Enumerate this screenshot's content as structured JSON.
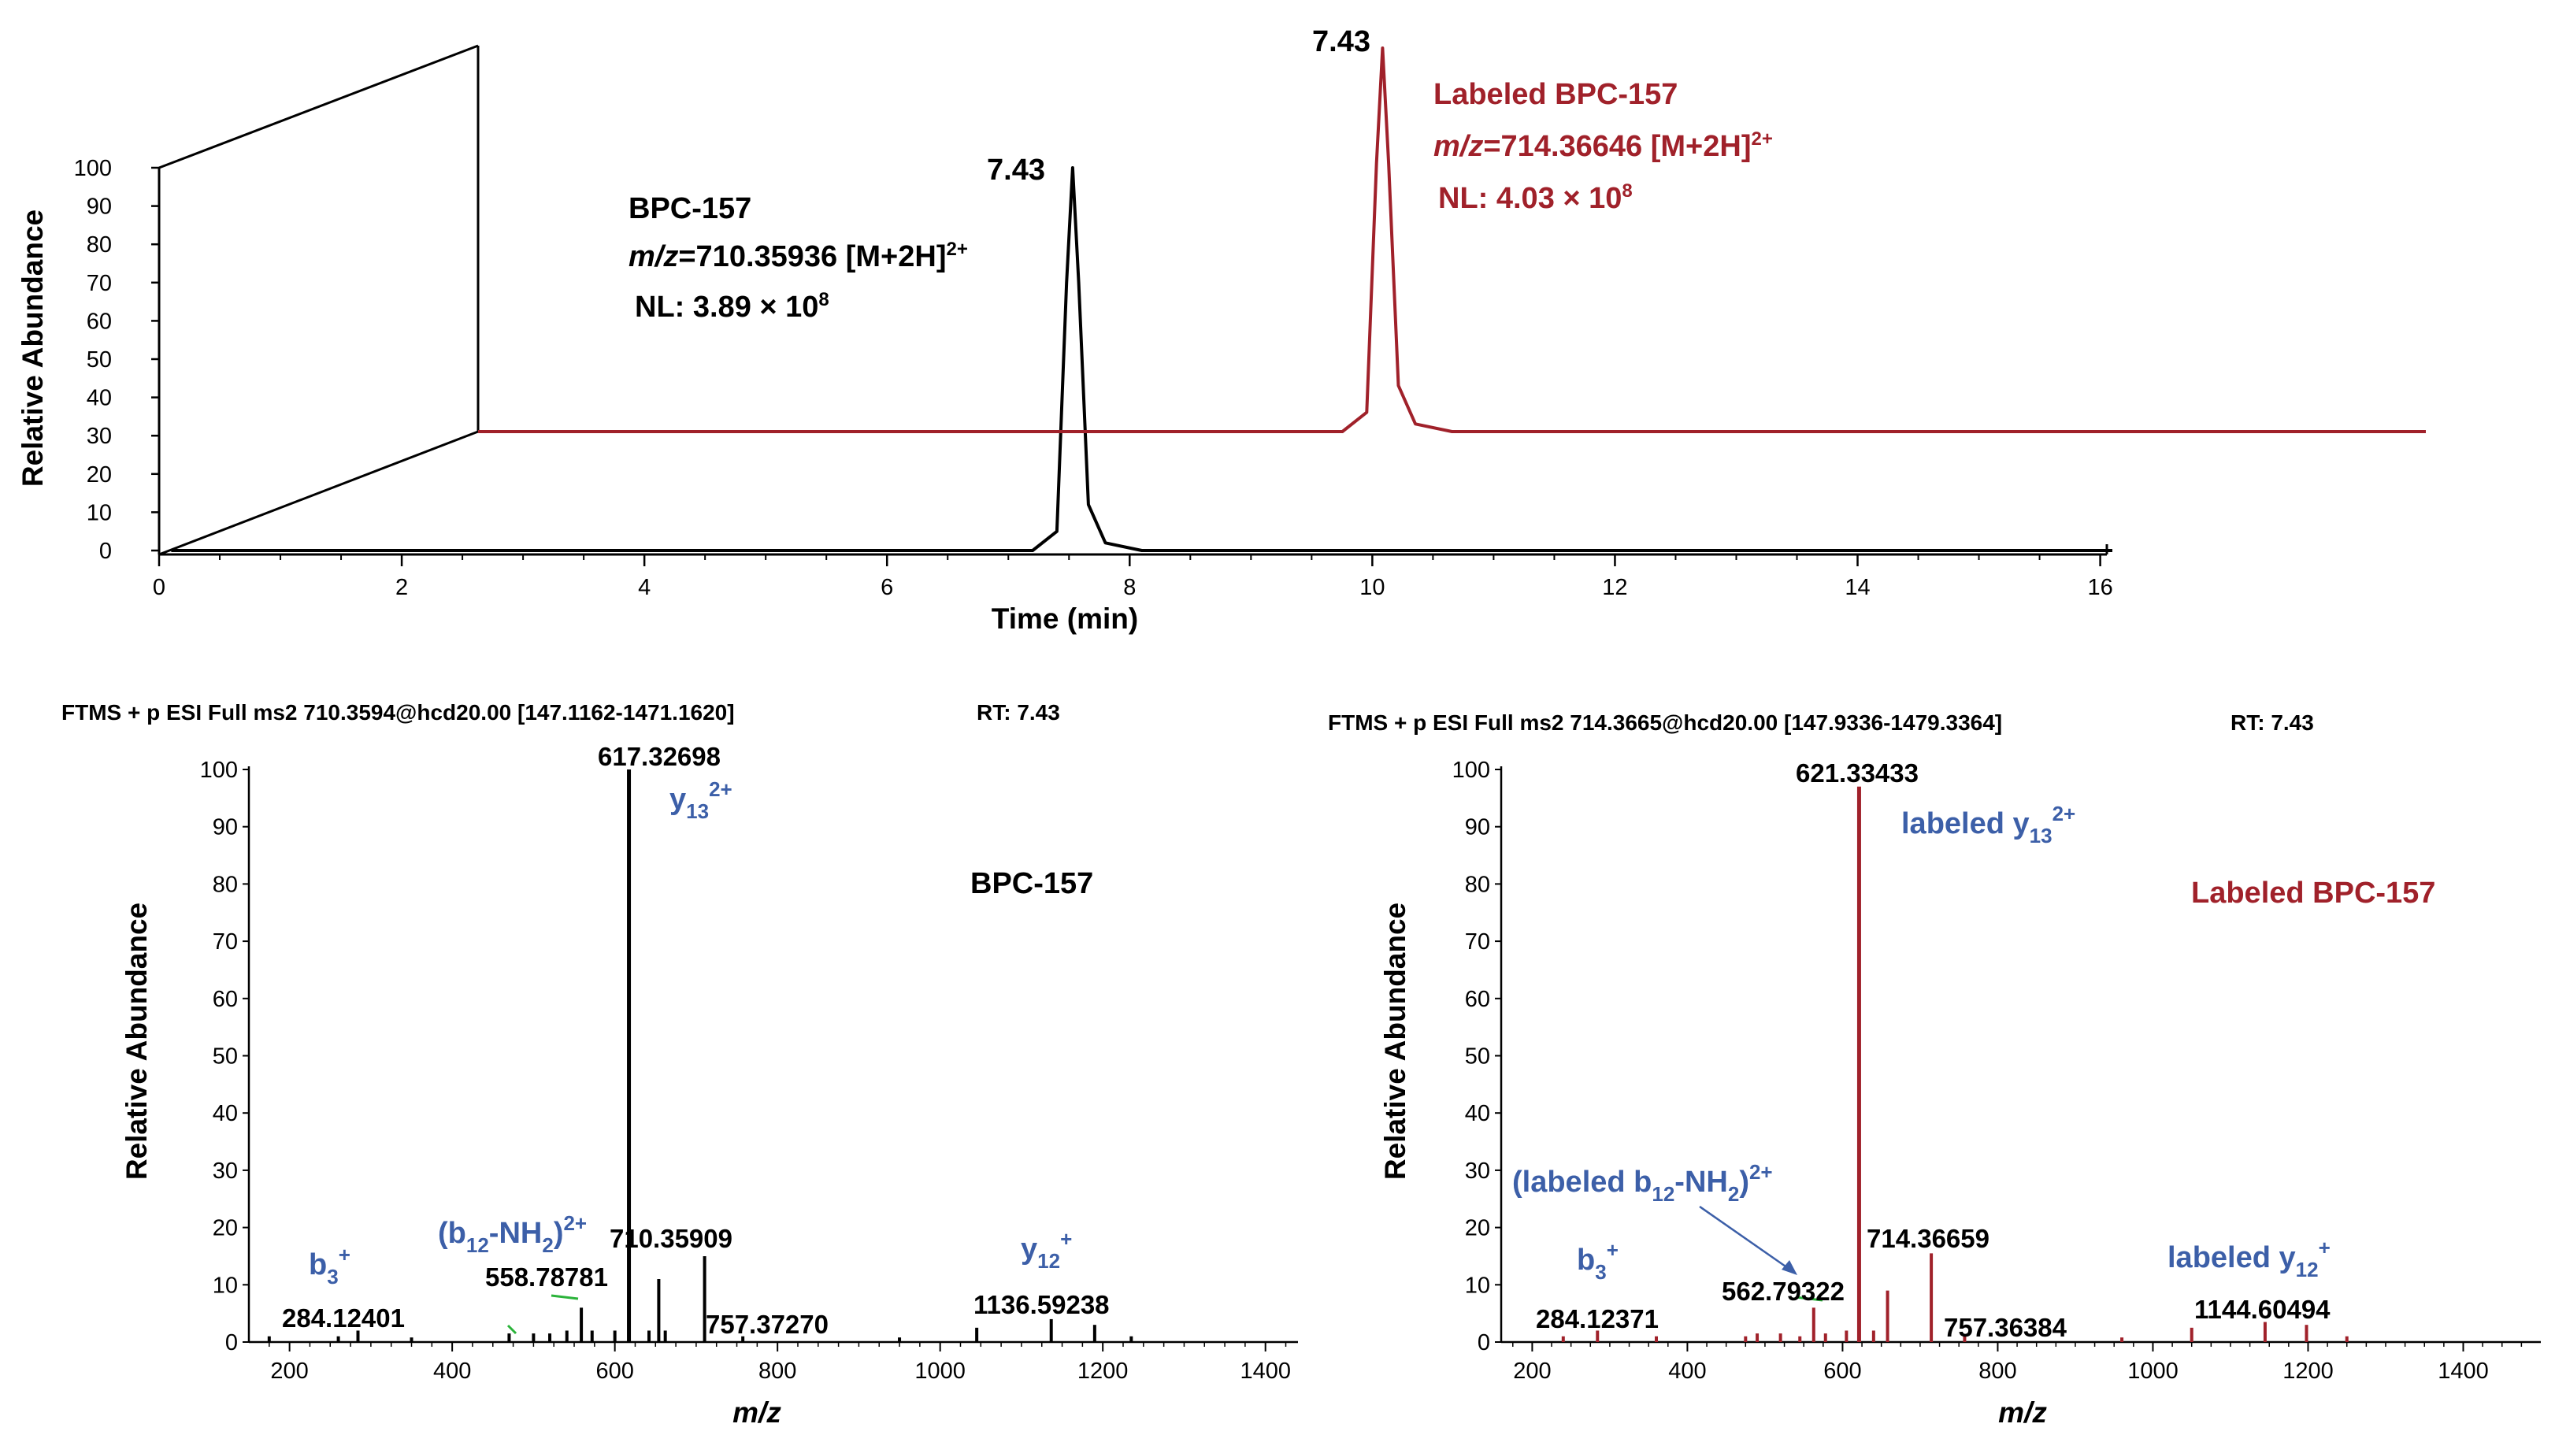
{
  "colors": {
    "black": "#000000",
    "red": "#a0212a",
    "blue": "#3c5fa8",
    "green": "#2bb33a"
  },
  "chart_data": [
    {
      "type": "line",
      "title": "",
      "xlabel": "Time (min)",
      "ylabel": "Relative Abundance",
      "xlim": [
        0,
        16
      ],
      "ylim": [
        0,
        100
      ],
      "xticks": [
        "0",
        "2",
        "4",
        "6",
        "8",
        "10",
        "12",
        "14",
        "16"
      ],
      "yticks": [
        "0",
        "10",
        "20",
        "30",
        "40",
        "50",
        "60",
        "70",
        "80",
        "90",
        "100"
      ],
      "series": [
        {
          "name": "BPC-157",
          "color": "#000000",
          "peak_rt": 7.43,
          "peak_label": "7.43",
          "annotation": {
            "line1": "BPC-157",
            "mz_italic": "m/z",
            "mz_value": "=710.35936  [M+2H]",
            "charge": "2+",
            "nl_text": "NL: 3.89 × 10",
            "nl_exp": "8"
          },
          "x": [
            0,
            7.1,
            7.3,
            7.38,
            7.43,
            7.48,
            7.56,
            7.7,
            8.0,
            16
          ],
          "y": [
            0,
            0,
            5,
            70,
            100,
            70,
            12,
            2,
            0,
            0
          ]
        },
        {
          "name": "Labeled BPC-157",
          "color": "#a0212a",
          "peak_rt": 7.43,
          "peak_label": "7.43",
          "annotation": {
            "line1": "Labeled BPC-157",
            "mz_italic": "m/z",
            "mz_value": "=714.36646 [M+2H]",
            "charge": "2+",
            "nl_text": "NL: 4.03 × 10",
            "nl_exp": "8"
          },
          "x": [
            0,
            7.1,
            7.3,
            7.38,
            7.43,
            7.48,
            7.56,
            7.7,
            8.0,
            16
          ],
          "y": [
            0,
            0,
            5,
            70,
            100,
            70,
            12,
            2,
            0,
            0
          ]
        }
      ]
    },
    {
      "type": "bar",
      "subtype": "mass spectrum",
      "header": "FTMS + p ESI Full ms2 710.3594@hcd20.00 [147.1162-1471.1620]",
      "rt_label": "RT: 7.43",
      "title": "BPC-157",
      "xlabel": "m/z",
      "ylabel": "Relative Abundance",
      "xlim": [
        150,
        1440
      ],
      "ylim": [
        0,
        100
      ],
      "xticks": [
        "200",
        "400",
        "600",
        "800",
        "1000",
        "1200",
        "1400"
      ],
      "yticks": [
        "0",
        "10",
        "20",
        "30",
        "40",
        "50",
        "60",
        "70",
        "80",
        "90",
        "100"
      ],
      "color": "#000000",
      "peaks": [
        {
          "mz": 175,
          "int": 1.0
        },
        {
          "mz": 260,
          "int": 1.0
        },
        {
          "mz": 284.12,
          "int": 2.0
        },
        {
          "mz": 350,
          "int": 0.8
        },
        {
          "mz": 470,
          "int": 1.5
        },
        {
          "mz": 500,
          "int": 1.5
        },
        {
          "mz": 520,
          "int": 1.5
        },
        {
          "mz": 541,
          "int": 2.0
        },
        {
          "mz": 558.79,
          "int": 6.0
        },
        {
          "mz": 572,
          "int": 2.0
        },
        {
          "mz": 600,
          "int": 2.0
        },
        {
          "mz": 617.33,
          "int": 100
        },
        {
          "mz": 642,
          "int": 2.0
        },
        {
          "mz": 654,
          "int": 11.0
        },
        {
          "mz": 662,
          "int": 2.0
        },
        {
          "mz": 710.36,
          "int": 15.0
        },
        {
          "mz": 757.37,
          "int": 1.0
        },
        {
          "mz": 950,
          "int": 0.8
        },
        {
          "mz": 1045,
          "int": 2.5
        },
        {
          "mz": 1136.59,
          "int": 4.0
        },
        {
          "mz": 1190,
          "int": 3.0
        },
        {
          "mz": 1235,
          "int": 1.0
        }
      ],
      "peak_labels": [
        {
          "text": "284.12401",
          "mz": 284.12
        },
        {
          "text": "558.78781",
          "mz": 558.79
        },
        {
          "text": "617.32698",
          "mz": 617.33
        },
        {
          "text": "710.35909",
          "mz": 710.36
        },
        {
          "text": "757.37270",
          "mz": 757.37
        },
        {
          "text": "1136.59238",
          "mz": 1136.59
        }
      ],
      "ion_labels": [
        {
          "base": "b",
          "sub": "3",
          "sup": "+"
        },
        {
          "pre": "(b",
          "sub": "12",
          "mid": "-NH",
          "sub2": "2",
          "post": ")",
          "sup": "2+"
        },
        {
          "base": "y",
          "sub": "13",
          "sup": "2+"
        },
        {
          "base": "y",
          "sub": "12",
          "sup": "+"
        }
      ]
    },
    {
      "type": "bar",
      "subtype": "mass spectrum",
      "header": "FTMS + p ESI Full ms2 714.3665@hcd20.00 [147.9336-1479.3364]",
      "rt_label": "RT: 7.43",
      "title": "Labeled BPC-157",
      "xlabel": "m/z",
      "ylabel": "Relative Abundance",
      "xlim": [
        160,
        1500
      ],
      "ylim": [
        0,
        100
      ],
      "xticks": [
        "200",
        "400",
        "600",
        "800",
        "1000",
        "1200",
        "1400"
      ],
      "yticks": [
        "0",
        "10",
        "20",
        "30",
        "40",
        "50",
        "60",
        "70",
        "80",
        "90",
        "100"
      ],
      "color": "#a0212a",
      "peaks": [
        {
          "mz": 240,
          "int": 1.0
        },
        {
          "mz": 284.12,
          "int": 2.0
        },
        {
          "mz": 360,
          "int": 1.0
        },
        {
          "mz": 475,
          "int": 1.0
        },
        {
          "mz": 490,
          "int": 1.5
        },
        {
          "mz": 520,
          "int": 1.5
        },
        {
          "mz": 545,
          "int": 1.0
        },
        {
          "mz": 562.79,
          "int": 6.0
        },
        {
          "mz": 578,
          "int": 1.5
        },
        {
          "mz": 605,
          "int": 2.0
        },
        {
          "mz": 621.33,
          "int": 97
        },
        {
          "mz": 640,
          "int": 2.0
        },
        {
          "mz": 658,
          "int": 9.0
        },
        {
          "mz": 714.37,
          "int": 15.5
        },
        {
          "mz": 757.36,
          "int": 1.0
        },
        {
          "mz": 960,
          "int": 0.8
        },
        {
          "mz": 1050,
          "int": 2.5
        },
        {
          "mz": 1144.6,
          "int": 3.5
        },
        {
          "mz": 1198,
          "int": 3.0
        },
        {
          "mz": 1250,
          "int": 1.0
        }
      ],
      "peak_labels": [
        {
          "text": "284.12371",
          "mz": 284.12
        },
        {
          "text": "562.79322",
          "mz": 562.79
        },
        {
          "text": "621.33433",
          "mz": 621.33
        },
        {
          "text": "714.36659",
          "mz": 714.37
        },
        {
          "text": "757.36384",
          "mz": 757.36
        },
        {
          "text": "1144.60494",
          "mz": 1144.6
        }
      ],
      "ion_labels": [
        {
          "base": "b",
          "sub": "3",
          "sup": "+"
        },
        {
          "pre": "(labeled b",
          "sub": "12",
          "mid": "-NH",
          "sub2": "2",
          "post": ")",
          "sup": "2+"
        },
        {
          "base": "labeled y",
          "sub": "13",
          "sup": "2+"
        },
        {
          "base": "labeled y",
          "sub": "12",
          "sup": "+"
        }
      ]
    }
  ]
}
